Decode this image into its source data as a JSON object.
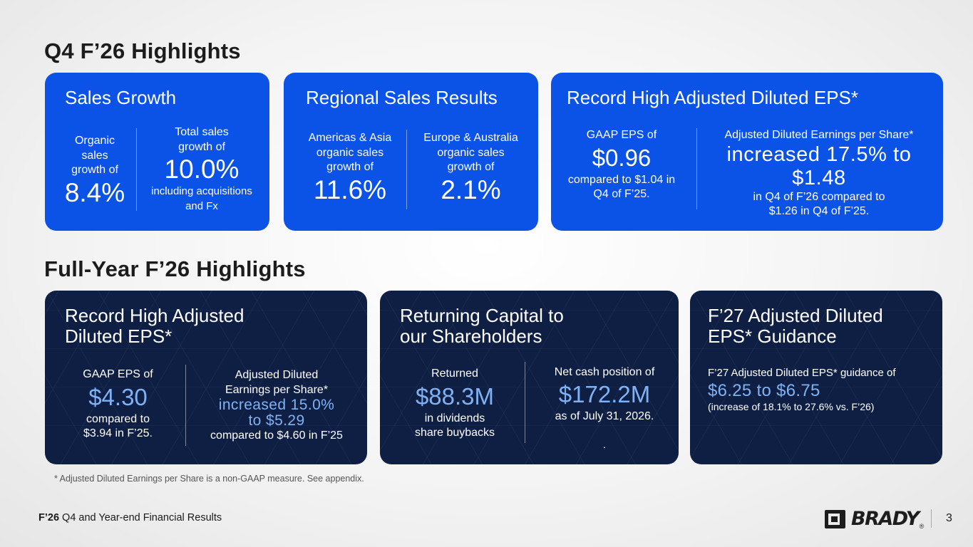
{
  "q4": {
    "title": "Q4 F’26 Highlights",
    "sales_growth": {
      "title": "Sales Growth",
      "organic_label": "Organic sales growth of",
      "organic_value": "8.4%",
      "total_label": "Total sales growth of",
      "total_value": "10.0%",
      "total_note": "including acquisitions and Fx"
    },
    "regional": {
      "title": "Regional Sales Results",
      "americas_label": "Americas & Asia organic sales growth of",
      "americas_value": "11.6%",
      "europe_label": "Europe & Australia organic sales growth of",
      "europe_value": "2.1%"
    },
    "eps": {
      "title": "Record High Adjusted Diluted EPS*",
      "gaap_label": "GAAP EPS of",
      "gaap_value": "$0.96",
      "gaap_note": "compared to $1.04 in Q4 of F’25.",
      "adj_label": "Adjusted Diluted Earnings per Share*",
      "adj_value": "increased 17.5% to $1.48",
      "adj_note": "in Q4 of F’26 compared to $1.26 in Q4 of F’25."
    }
  },
  "fy": {
    "title": "Full-Year F’26 Highlights",
    "eps": {
      "title": "Record High Adjusted Diluted EPS*",
      "gaap_label": "GAAP EPS of",
      "gaap_value": "$4.30",
      "gaap_note": "compared to $3.94 in F’25.",
      "adj_label": "Adjusted Diluted Earnings per Share*",
      "adj_value": "increased 15.0% to $5.29",
      "adj_note": "compared to $4.60 in F’25"
    },
    "capital": {
      "title": "Returning Capital to our Shareholders",
      "returned_label": "Returned",
      "returned_value": "$88.3M",
      "returned_note": "in dividends share buybacks",
      "cash_label": "Net cash position of",
      "cash_value": "$172.2M",
      "cash_note": "as of July 31, 2026.",
      "stray": "."
    },
    "guidance": {
      "title": "F’27 Adjusted Diluted EPS* Guidance",
      "label": "F’27 Adjusted Diluted EPS* guidance of",
      "value": "$6.25 to $6.75",
      "note": "(increase of 18.1% to 27.6% vs. F’26)"
    }
  },
  "footnote": "* Adjusted Diluted Earnings per Share is a non-GAAP measure.  See appendix.",
  "footer": {
    "bold": "F’26",
    "text": " Q4 and Year-end Financial Results"
  },
  "brand": {
    "logo_text": "BRADY",
    "registered": "®"
  },
  "page_number": "3",
  "colors": {
    "card_blue": "#0b52e6",
    "card_navy": "#0f1f44",
    "highlight": "#7fb2f4"
  }
}
